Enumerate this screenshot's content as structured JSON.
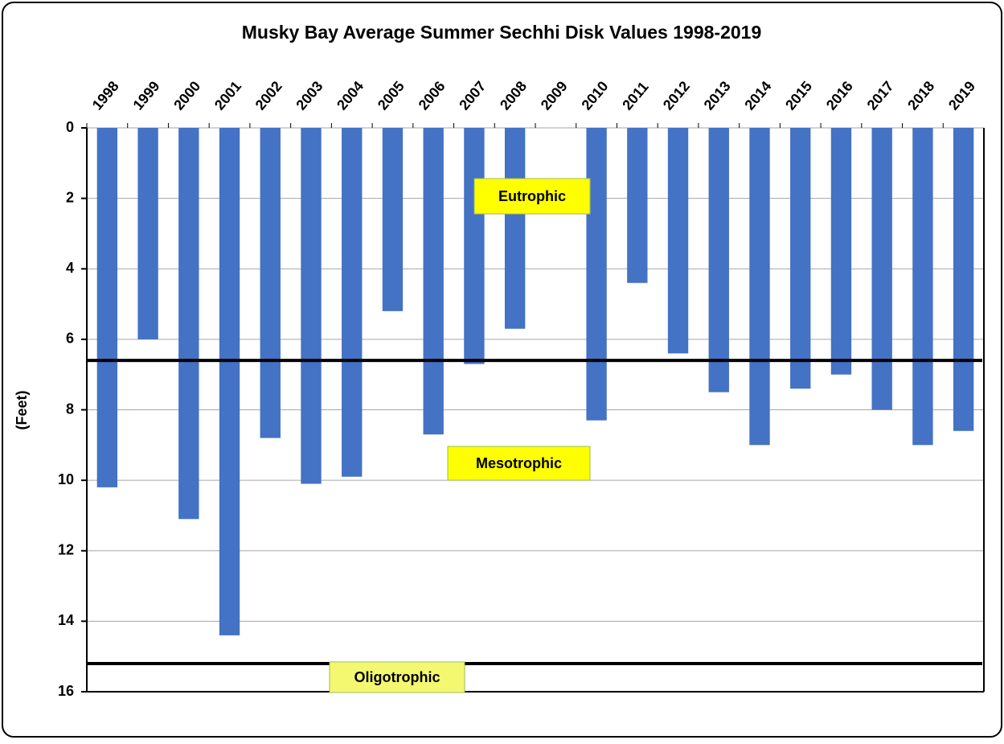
{
  "chart_data": {
    "type": "bar",
    "title": "Musky Bay Average Summer Sechhi Disk Values 1998-2019",
    "y_label": "(Feet)",
    "categories": [
      "1998",
      "1999",
      "2000",
      "2001",
      "2002",
      "2003",
      "2004",
      "2005",
      "2006",
      "2007",
      "2008",
      "2009",
      "2010",
      "2011",
      "2012",
      "2013",
      "2014",
      "2015",
      "2016",
      "2017",
      "2018",
      "2019"
    ],
    "values": [
      10.2,
      6.0,
      11.1,
      14.4,
      8.8,
      10.1,
      9.9,
      5.2,
      8.7,
      6.7,
      5.7,
      null,
      8.3,
      4.4,
      6.4,
      7.5,
      9.0,
      7.4,
      7.0,
      8.0,
      9.0,
      8.6
    ],
    "color": "#4472c4",
    "ylim": [
      0,
      16
    ],
    "yticks": [
      0,
      2,
      4,
      6,
      8,
      10,
      12,
      14,
      16
    ],
    "y_inverted": true,
    "grid": true,
    "reference_lines": [
      6.6,
      15.2
    ],
    "annotations": [
      "Eutrophic",
      "Mesotrophic",
      "Oligotrophic"
    ]
  }
}
